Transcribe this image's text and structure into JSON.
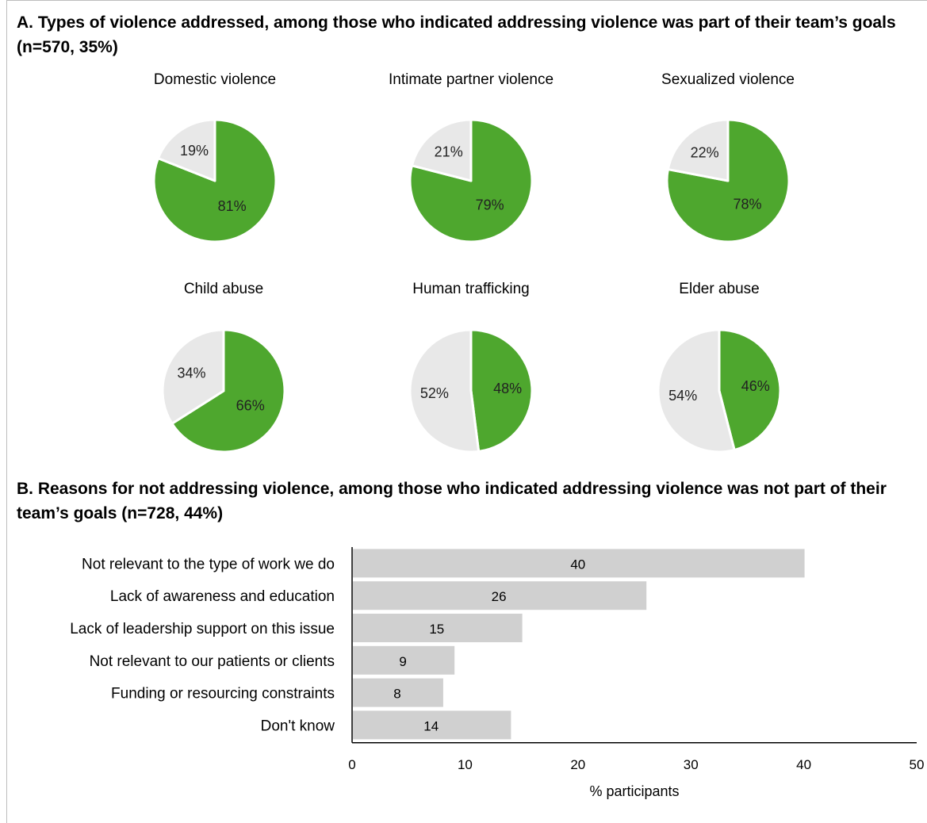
{
  "panel_a": {
    "title": "A. Types of violence addressed, among those who indicated addressing violence was part of their team’s goals (n=570, 35%)"
  },
  "panel_b": {
    "title": "B. Reasons for not addressing violence, among those who indicated addressing violence was not part of their team’s goals (n=728, 44%)"
  },
  "colors": {
    "yes": "#4ea72e",
    "no": "#e8e8e8",
    "bar": "#d0d0d0",
    "axis": "#000000"
  },
  "chart_data": [
    {
      "type": "pie",
      "title": "Domestic violence",
      "slices": [
        {
          "label": "81%",
          "value": 81,
          "color": "#4ea72e"
        },
        {
          "label": "19%",
          "value": 19,
          "color": "#e8e8e8"
        }
      ]
    },
    {
      "type": "pie",
      "title": "Intimate partner violence",
      "slices": [
        {
          "label": "79%",
          "value": 79,
          "color": "#4ea72e"
        },
        {
          "label": "21%",
          "value": 21,
          "color": "#e8e8e8"
        }
      ]
    },
    {
      "type": "pie",
      "title": "Sexualized violence",
      "slices": [
        {
          "label": "78%",
          "value": 78,
          "color": "#4ea72e"
        },
        {
          "label": "22%",
          "value": 22,
          "color": "#e8e8e8"
        }
      ]
    },
    {
      "type": "pie",
      "title": "Child abuse",
      "slices": [
        {
          "label": "66%",
          "value": 66,
          "color": "#4ea72e"
        },
        {
          "label": "34%",
          "value": 34,
          "color": "#e8e8e8"
        }
      ]
    },
    {
      "type": "pie",
      "title": "Human trafficking",
      "slices": [
        {
          "label": "48%",
          "value": 48,
          "color": "#4ea72e"
        },
        {
          "label": "52%",
          "value": 52,
          "color": "#e8e8e8"
        }
      ]
    },
    {
      "type": "pie",
      "title": "Elder abuse",
      "slices": [
        {
          "label": "46%",
          "value": 46,
          "color": "#4ea72e"
        },
        {
          "label": "54%",
          "value": 54,
          "color": "#e8e8e8"
        }
      ]
    },
    {
      "type": "bar",
      "orientation": "horizontal",
      "categories": [
        "Not relevant to the type of work we do",
        "Lack of awareness and education",
        "Lack of leadership support on this issue",
        "Not relevant to our patients or clients",
        "Funding or resourcing constraints",
        "Don't know"
      ],
      "values": [
        40,
        26,
        15,
        9,
        8,
        14
      ],
      "value_labels": [
        "40",
        "26",
        "15",
        "9",
        "8",
        "14"
      ],
      "xlabel": "% participants",
      "xlim": [
        0,
        50
      ],
      "xticks": [
        0,
        10,
        20,
        30,
        40,
        50
      ],
      "xtick_labels": [
        "0",
        "10",
        "20",
        "30",
        "40",
        "50"
      ],
      "grid": false
    }
  ]
}
